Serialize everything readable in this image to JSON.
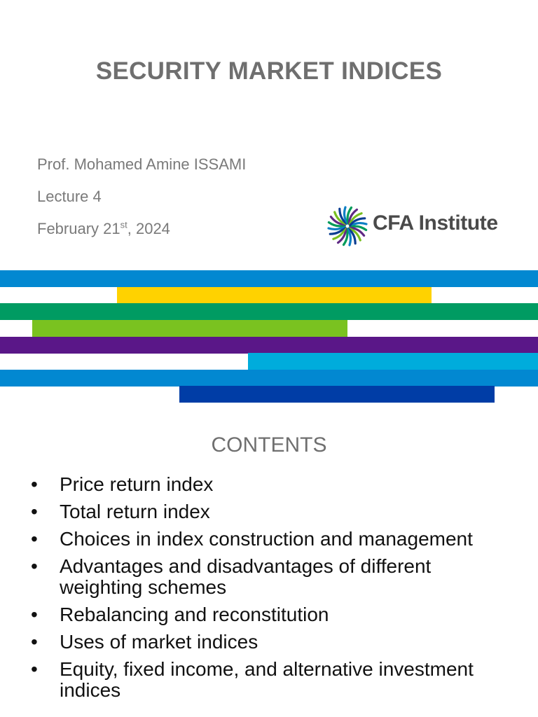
{
  "slide": {
    "title": "SECURITY MARKET INDICES",
    "author": "Prof. Mohamed Amine ISSAMI",
    "lecture": "Lecture 4",
    "date_prefix": "February 21",
    "date_suffix": "st",
    "date_year": ", 2024"
  },
  "logo": {
    "text": "CFA Institute",
    "icon": "cfa-pinwheel-icon",
    "colors": [
      "#0c7fc4",
      "#009b5a",
      "#5f2a84",
      "#78be20",
      "#0a3d91"
    ]
  },
  "stripes": [
    {
      "color": "#0288d1"
    },
    {
      "color": "#ffd200"
    },
    {
      "color": "#009b62"
    },
    {
      "color": "#7ac220"
    },
    {
      "color": "#5a1788"
    },
    {
      "color": "#00acdc"
    },
    {
      "color": "#0288d1"
    },
    {
      "color": "#003da6"
    }
  ],
  "contents": {
    "heading": "CONTENTS",
    "bullet_glyph": "•",
    "items": [
      "Price return index",
      "Total return index",
      "Choices in index construction and management",
      "Advantages and disadvantages of different weighting schemes",
      "Rebalancing and reconstitution",
      "Uses of market indices",
      "Equity, fixed income, and alternative investment indices"
    ]
  }
}
